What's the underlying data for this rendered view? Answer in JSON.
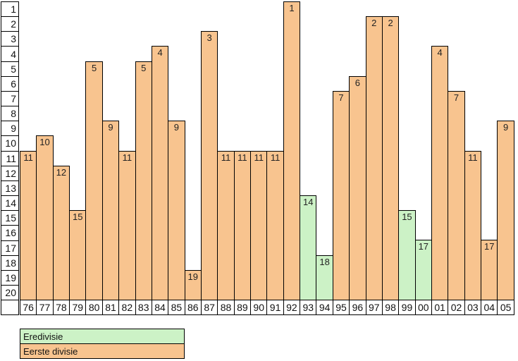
{
  "chart_data": {
    "type": "bar",
    "title": "",
    "xlabel": "",
    "ylabel": "",
    "y_axis_inverted": true,
    "ylim": [
      1,
      20
    ],
    "y_ticks": [
      "1",
      "2",
      "3",
      "4",
      "5",
      "6",
      "7",
      "8",
      "9",
      "10",
      "11",
      "12",
      "13",
      "14",
      "15",
      "16",
      "17",
      "18",
      "19",
      "20"
    ],
    "categories": [
      "76",
      "77",
      "78",
      "79",
      "80",
      "81",
      "82",
      "83",
      "84",
      "85",
      "86",
      "87",
      "88",
      "89",
      "90",
      "91",
      "92",
      "93",
      "94",
      "95",
      "96",
      "97",
      "98",
      "99",
      "00",
      "01",
      "02",
      "03",
      "04",
      "05"
    ],
    "points": [
      {
        "year": "76",
        "position": 11,
        "division": "Eerste divisie"
      },
      {
        "year": "77",
        "position": 10,
        "division": "Eerste divisie"
      },
      {
        "year": "78",
        "position": 12,
        "division": "Eerste divisie"
      },
      {
        "year": "79",
        "position": 15,
        "division": "Eerste divisie"
      },
      {
        "year": "80",
        "position": 5,
        "division": "Eerste divisie"
      },
      {
        "year": "81",
        "position": 9,
        "division": "Eerste divisie"
      },
      {
        "year": "82",
        "position": 11,
        "division": "Eerste divisie"
      },
      {
        "year": "83",
        "position": 5,
        "division": "Eerste divisie"
      },
      {
        "year": "84",
        "position": 4,
        "division": "Eerste divisie"
      },
      {
        "year": "85",
        "position": 9,
        "division": "Eerste divisie"
      },
      {
        "year": "86",
        "position": 19,
        "division": "Eerste divisie"
      },
      {
        "year": "87",
        "position": 3,
        "division": "Eerste divisie"
      },
      {
        "year": "88",
        "position": 11,
        "division": "Eerste divisie"
      },
      {
        "year": "89",
        "position": 11,
        "division": "Eerste divisie"
      },
      {
        "year": "90",
        "position": 11,
        "division": "Eerste divisie"
      },
      {
        "year": "91",
        "position": 11,
        "division": "Eerste divisie"
      },
      {
        "year": "92",
        "position": 1,
        "division": "Eerste divisie"
      },
      {
        "year": "93",
        "position": 14,
        "division": "Eredivisie"
      },
      {
        "year": "94",
        "position": 18,
        "division": "Eredivisie"
      },
      {
        "year": "95",
        "position": 7,
        "division": "Eerste divisie"
      },
      {
        "year": "96",
        "position": 6,
        "division": "Eerste divisie"
      },
      {
        "year": "97",
        "position": 2,
        "division": "Eerste divisie"
      },
      {
        "year": "98",
        "position": 2,
        "division": "Eerste divisie"
      },
      {
        "year": "99",
        "position": 15,
        "division": "Eredivisie"
      },
      {
        "year": "00",
        "position": 17,
        "division": "Eredivisie"
      },
      {
        "year": "01",
        "position": 4,
        "division": "Eerste divisie"
      },
      {
        "year": "02",
        "position": 7,
        "division": "Eerste divisie"
      },
      {
        "year": "03",
        "position": 11,
        "division": "Eerste divisie"
      },
      {
        "year": "04",
        "position": 17,
        "division": "Eerste divisie"
      },
      {
        "year": "05",
        "position": 9,
        "division": "Eerste divisie"
      }
    ],
    "legend": [
      {
        "label": "Eredivisie",
        "color": "#CCF2C6"
      },
      {
        "label": "Eerste divisie",
        "color": "#F8C48F"
      }
    ],
    "grid": false,
    "legend_position": "bottom-left",
    "colors": {
      "border": "#000000",
      "background": "#FFFFFF"
    }
  }
}
